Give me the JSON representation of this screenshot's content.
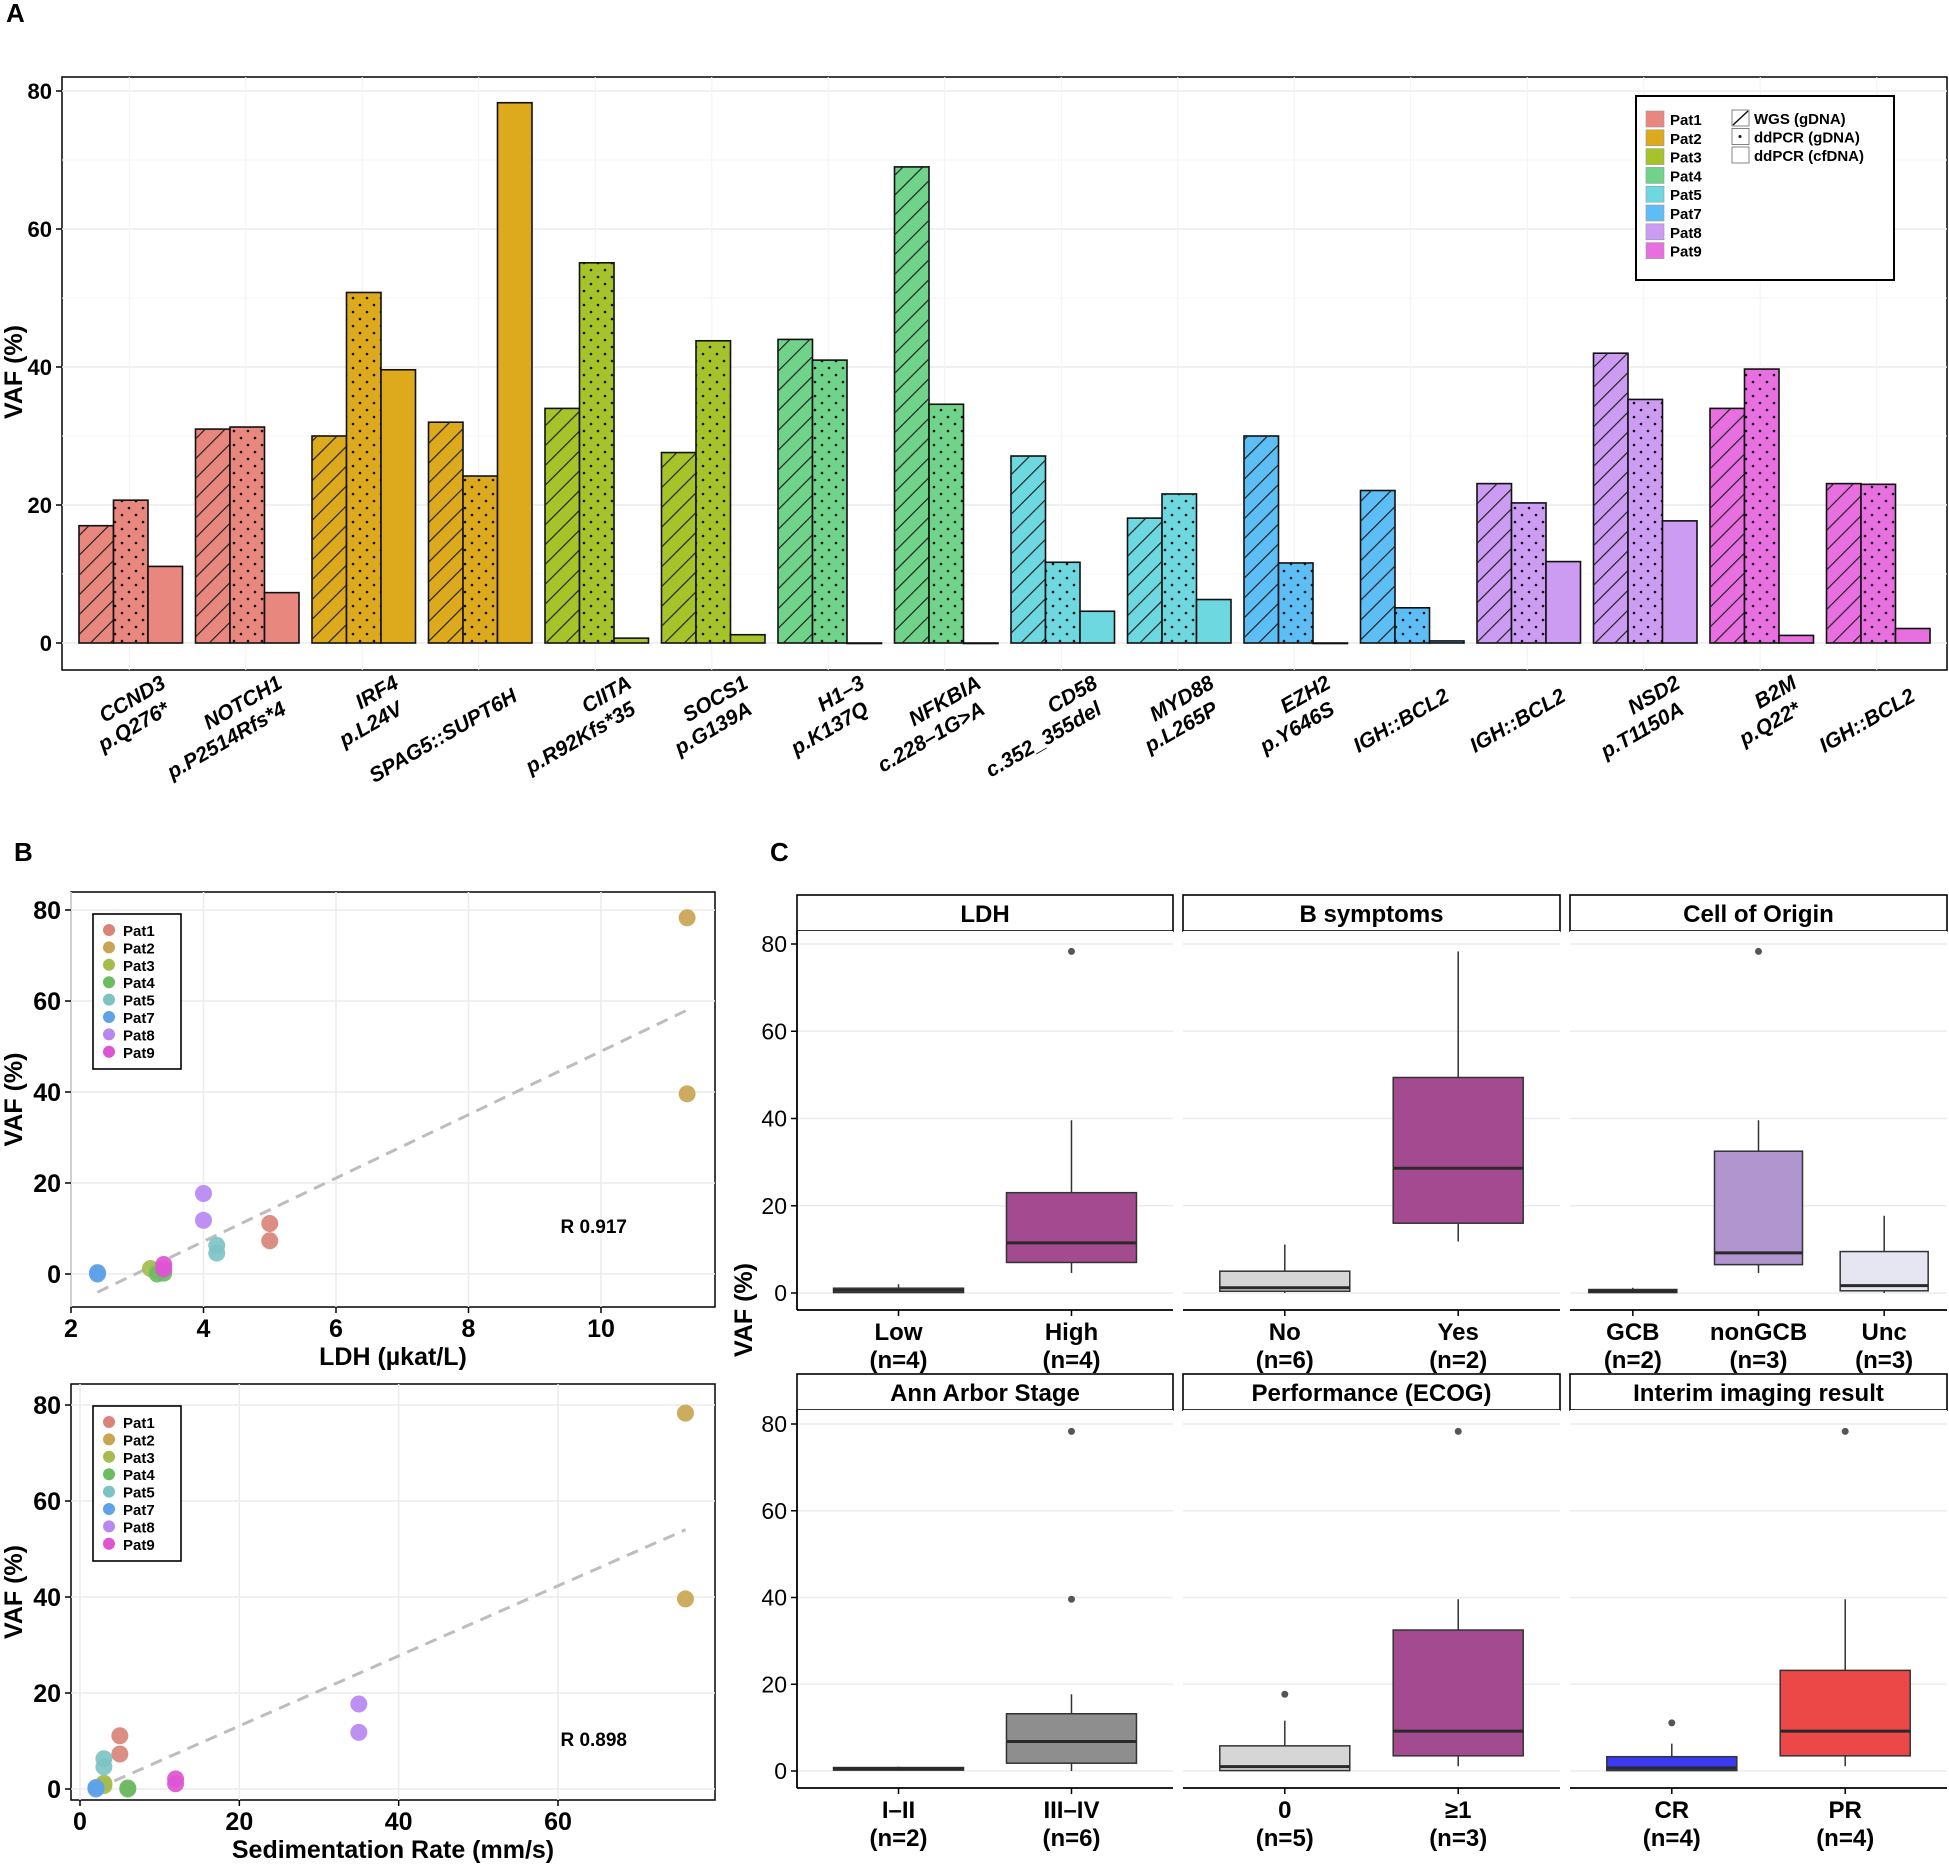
{
  "colors": {
    "Pat1": "#E8877E",
    "Pat2": "#DDAA1E",
    "Pat3": "#A6C42A",
    "Pat4": "#6FD38A",
    "Pat5": "#6ED8E0",
    "Pat7": "#5DBDF5",
    "Pat8": "#CC9BF2",
    "Pat9": "#E86FE0",
    "box_magenta": "#A44A90",
    "box_light_gray": "#D6D6D6",
    "box_purple": "#B095CF",
    "box_lavender": "#E6E6F2",
    "box_dark_gray": "#8E8E8E",
    "box_blue": "#3A3AF2",
    "box_red": "#EC4848",
    "scatter_Pat1": "#D9847B",
    "scatter_Pat2": "#C9A553",
    "scatter_Pat3": "#A5BC4F",
    "scatter_Pat4": "#6CBC64",
    "scatter_Pat5": "#7DC3C6",
    "scatter_Pat7": "#5FA2E8",
    "scatter_Pat8": "#B787F2",
    "scatter_Pat9": "#DD55D2"
  },
  "icons": {
    "wgs": "diagonal-hatch-icon",
    "ddpcr_gdna": "dotted-pattern-icon",
    "ddpcr_cfdna": "blank-square-icon"
  },
  "chart_data": [
    {
      "panel": "A",
      "type": "bar",
      "ylabel": "VAF (%)",
      "ylim": [
        0,
        82
      ],
      "yticks": [
        0,
        20,
        40,
        60,
        80
      ],
      "grid": true,
      "legend": {
        "placement": "top-right",
        "patients": [
          "Pat1",
          "Pat2",
          "Pat3",
          "Pat4",
          "Pat5",
          "Pat7",
          "Pat8",
          "Pat9"
        ],
        "methods": [
          "WGS (gDNA)",
          "ddPCR (gDNA)",
          "ddPCR (cfDNA)"
        ]
      },
      "methods_order": [
        "WGS",
        "ddPCR_gDNA",
        "ddPCR_cfDNA"
      ],
      "groups": [
        {
          "label": [
            "CCND3",
            "p.Q276*"
          ],
          "patient": "Pat1",
          "values": [
            17,
            20.7,
            11.1
          ]
        },
        {
          "label": [
            "NOTCH1",
            "p.P2514Rfs*4"
          ],
          "patient": "Pat1",
          "values": [
            31,
            31.3,
            7.3
          ]
        },
        {
          "label": [
            "IRF4",
            "p.L24V"
          ],
          "patient": "Pat2",
          "values": [
            30,
            50.8,
            39.6
          ]
        },
        {
          "label": [
            "SPAG5::SUPT6H"
          ],
          "patient": "Pat2",
          "values": [
            32,
            24.2,
            78.3
          ]
        },
        {
          "label": [
            "CIITA",
            "p.R92Kfs*35"
          ],
          "patient": "Pat3",
          "values": [
            34,
            55.1,
            0.7
          ]
        },
        {
          "label": [
            "SOCS1",
            "p.G139A"
          ],
          "patient": "Pat3",
          "values": [
            27.6,
            43.8,
            1.2
          ]
        },
        {
          "label": [
            "H1–3",
            "p.K137Q"
          ],
          "patient": "Pat4",
          "values": [
            44,
            41,
            0
          ]
        },
        {
          "label": [
            "NFKBIA",
            "c.228–1G>A"
          ],
          "patient": "Pat4",
          "values": [
            69,
            34.6,
            0
          ]
        },
        {
          "label": [
            "CD58",
            "c.352_355del"
          ],
          "patient": "Pat5",
          "values": [
            27.1,
            11.7,
            4.6
          ]
        },
        {
          "label": [
            "MYD88",
            "p.L265P"
          ],
          "patient": "Pat5",
          "values": [
            18.1,
            21.6,
            6.3
          ]
        },
        {
          "label": [
            "EZH2",
            "p.Y646S"
          ],
          "patient": "Pat7",
          "values": [
            30,
            11.6,
            0
          ]
        },
        {
          "label": [
            "IGH::BCL2"
          ],
          "patient": "Pat7",
          "values": [
            22.1,
            5.1,
            0.3
          ]
        },
        {
          "label": [
            "IGH::BCL2"
          ],
          "patient": "Pat8",
          "values": [
            23.1,
            20.3,
            11.8
          ]
        },
        {
          "label": [
            "NSD2",
            "p.T1150A"
          ],
          "patient": "Pat8",
          "values": [
            42,
            35.3,
            17.7
          ]
        },
        {
          "label": [
            "B2M",
            "p.Q22*"
          ],
          "patient": "Pat9",
          "values": [
            34,
            39.7,
            1.1
          ]
        },
        {
          "label": [
            "IGH::BCL2"
          ],
          "patient": "Pat9",
          "values": [
            23.1,
            23,
            2.1
          ]
        }
      ]
    },
    {
      "panel": "B-top",
      "type": "scatter",
      "xlabel": "LDH (µkat/L)",
      "ylabel": "VAF (%)",
      "xlim": [
        2,
        11.6
      ],
      "ylim": [
        -7,
        83
      ],
      "xticks": [
        2,
        4,
        6,
        8,
        10
      ],
      "yticks": [
        0,
        20,
        40,
        60,
        80
      ],
      "annotation": "R 0.917",
      "legend_placement": "top-left",
      "legend": [
        "Pat1",
        "Pat2",
        "Pat3",
        "Pat4",
        "Pat5",
        "Pat7",
        "Pat8",
        "Pat9"
      ],
      "fit": {
        "x": [
          2.4,
          11.3
        ],
        "y": [
          -4,
          58
        ]
      },
      "points": [
        {
          "patient": "Pat1",
          "x": 5.0,
          "y": 11.1
        },
        {
          "patient": "Pat1",
          "x": 5.0,
          "y": 7.3
        },
        {
          "patient": "Pat2",
          "x": 11.3,
          "y": 78.3
        },
        {
          "patient": "Pat2",
          "x": 11.3,
          "y": 39.6
        },
        {
          "patient": "Pat3",
          "x": 3.2,
          "y": 1.2
        },
        {
          "patient": "Pat3",
          "x": 3.3,
          "y": 0.7
        },
        {
          "patient": "Pat4",
          "x": 3.3,
          "y": 0
        },
        {
          "patient": "Pat4",
          "x": 3.4,
          "y": 0.2
        },
        {
          "patient": "Pat5",
          "x": 4.2,
          "y": 6.3
        },
        {
          "patient": "Pat5",
          "x": 4.2,
          "y": 4.6
        },
        {
          "patient": "Pat7",
          "x": 2.4,
          "y": 0.3
        },
        {
          "patient": "Pat7",
          "x": 2.4,
          "y": 0
        },
        {
          "patient": "Pat8",
          "x": 4.0,
          "y": 17.7
        },
        {
          "patient": "Pat8",
          "x": 4.0,
          "y": 11.8
        },
        {
          "patient": "Pat9",
          "x": 3.4,
          "y": 2.1
        },
        {
          "patient": "Pat9",
          "x": 3.4,
          "y": 1.1
        }
      ]
    },
    {
      "panel": "B-bottom",
      "type": "scatter",
      "xlabel": "Sedimentation Rate (mm/s)",
      "ylabel": "VAF (%)",
      "xlim": [
        0,
        80
      ],
      "ylim": [
        -2,
        82
      ],
      "xticks": [
        0,
        20,
        40,
        60
      ],
      "yticks": [
        0,
        20,
        40,
        60,
        80
      ],
      "annotation": "R 0.898",
      "legend_placement": "top-left",
      "legend": [
        "Pat1",
        "Pat2",
        "Pat3",
        "Pat4",
        "Pat5",
        "Pat7",
        "Pat8",
        "Pat9"
      ],
      "fit": {
        "x": [
          2,
          76
        ],
        "y": [
          0,
          54
        ]
      },
      "points": [
        {
          "patient": "Pat1",
          "x": 5,
          "y": 11.1
        },
        {
          "patient": "Pat1",
          "x": 5,
          "y": 7.3
        },
        {
          "patient": "Pat2",
          "x": 76,
          "y": 78.3
        },
        {
          "patient": "Pat2",
          "x": 76,
          "y": 39.6
        },
        {
          "patient": "Pat3",
          "x": 3,
          "y": 1.2
        },
        {
          "patient": "Pat3",
          "x": 3,
          "y": 0.7
        },
        {
          "patient": "Pat4",
          "x": 6,
          "y": 0
        },
        {
          "patient": "Pat4",
          "x": 6,
          "y": 0.2
        },
        {
          "patient": "Pat5",
          "x": 3,
          "y": 6.3
        },
        {
          "patient": "Pat5",
          "x": 3,
          "y": 4.6
        },
        {
          "patient": "Pat7",
          "x": 2,
          "y": 0.3
        },
        {
          "patient": "Pat7",
          "x": 2,
          "y": 0
        },
        {
          "patient": "Pat8",
          "x": 35,
          "y": 17.7
        },
        {
          "patient": "Pat8",
          "x": 35,
          "y": 11.8
        },
        {
          "patient": "Pat9",
          "x": 12,
          "y": 2.1
        },
        {
          "patient": "Pat9",
          "x": 12,
          "y": 1.1
        }
      ]
    },
    {
      "panel": "C",
      "type": "box",
      "ylabel": "VAF (%)",
      "ylim": [
        -3,
        82
      ],
      "yticks": [
        0,
        20,
        40,
        60,
        80
      ],
      "facets": [
        {
          "title": "LDH",
          "groups": [
            {
              "label": "Low",
              "n": "(n=4)",
              "color": "box_light_gray",
              "q1": 0.1,
              "med": 0.6,
              "q3": 1.1,
              "lo": 0,
              "hi": 2,
              "outliers": []
            },
            {
              "label": "High",
              "n": "(n=4)",
              "color": "box_magenta",
              "q1": 7,
              "med": 11.5,
              "q3": 23,
              "lo": 4.6,
              "hi": 39.6,
              "outliers": [
                78.3
              ]
            }
          ]
        },
        {
          "title": "B symptoms",
          "groups": [
            {
              "label": "No",
              "n": "(n=6)",
              "color": "box_light_gray",
              "q1": 0.4,
              "med": 1.2,
              "q3": 5,
              "lo": 0,
              "hi": 11.1,
              "outliers": []
            },
            {
              "label": "Yes",
              "n": "(n=2)",
              "color": "box_magenta",
              "q1": 16,
              "med": 28.6,
              "q3": 49.4,
              "lo": 11.8,
              "hi": 78.3,
              "outliers": []
            }
          ]
        },
        {
          "title": "Cell of Origin",
          "groups": [
            {
              "label": "GCB",
              "n": "(n=2)",
              "color": "box_light_gray",
              "q1": 0.1,
              "med": 0.4,
              "q3": 0.8,
              "lo": 0,
              "hi": 1.2,
              "outliers": []
            },
            {
              "label": "nonGCB",
              "n": "(n=3)",
              "color": "box_purple",
              "q1": 6.5,
              "med": 9.2,
              "q3": 32.5,
              "lo": 4.6,
              "hi": 39.6,
              "outliers": [
                78.3
              ]
            },
            {
              "label": "Unc",
              "n": "(n=3)",
              "color": "box_lavender",
              "q1": 0.5,
              "med": 1.7,
              "q3": 9.5,
              "lo": 0,
              "hi": 17.7,
              "outliers": []
            }
          ]
        },
        {
          "title": "Ann Arbor Stage",
          "groups": [
            {
              "label": "I–II",
              "n": "(n=2)",
              "color": "box_light_gray",
              "q1": 0.2,
              "med": 0.5,
              "q3": 0.8,
              "lo": 0.1,
              "hi": 1,
              "outliers": []
            },
            {
              "label": "III–IV",
              "n": "(n=6)",
              "color": "box_dark_gray",
              "q1": 1.8,
              "med": 6.8,
              "q3": 13.2,
              "lo": 0,
              "hi": 17.7,
              "outliers": [
                39.6,
                78.3
              ]
            }
          ]
        },
        {
          "title": "Performance (ECOG)",
          "groups": [
            {
              "label": "0",
              "n": "(n=5)",
              "color": "box_light_gray",
              "q1": 0.1,
              "med": 1,
              "q3": 5.8,
              "lo": 0,
              "hi": 11.6,
              "outliers": [
                17.7
              ]
            },
            {
              "label": "≥1",
              "n": "(n=3)",
              "color": "box_magenta",
              "q1": 3.5,
              "med": 9.2,
              "q3": 32.5,
              "lo": 1.1,
              "hi": 39.6,
              "outliers": [
                78.3
              ]
            }
          ]
        },
        {
          "title": "Interim imaging result",
          "groups": [
            {
              "label": "CR",
              "n": "(n=4)",
              "color": "box_blue",
              "q1": 0.1,
              "med": 0.7,
              "q3": 3.3,
              "lo": 0,
              "hi": 6.3,
              "outliers": [
                11.1
              ]
            },
            {
              "label": "PR",
              "n": "(n=4)",
              "color": "box_red",
              "q1": 3.5,
              "med": 9.2,
              "q3": 23.2,
              "lo": 1.1,
              "hi": 39.6,
              "outliers": [
                78.3
              ]
            }
          ]
        }
      ]
    }
  ],
  "panels": {
    "a": "A",
    "b": "B",
    "c": "C"
  }
}
